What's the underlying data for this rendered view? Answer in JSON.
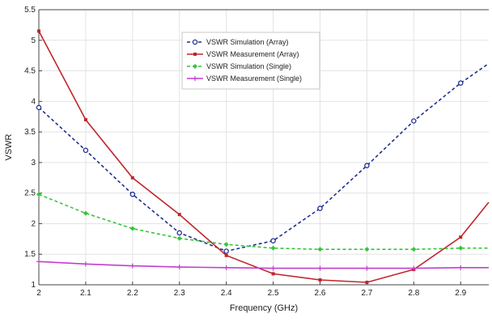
{
  "chart_data": {
    "type": "line",
    "title": "",
    "xlabel": "Frequency (GHz)",
    "ylabel": "VSWR",
    "xlim": [
      2.0,
      2.9
    ],
    "ylim": [
      1.0,
      5.5
    ],
    "xticks": [
      2.0,
      2.1,
      2.2,
      2.3,
      2.4,
      2.5,
      2.6,
      2.7,
      2.8,
      2.9
    ],
    "xtick_labels": [
      "2",
      "2.1",
      "2.2",
      "2.3",
      "2.4",
      "2.5",
      "2.6",
      "2.7",
      "2.8",
      "2.9"
    ],
    "yticks": [
      1.0,
      1.5,
      2.0,
      2.5,
      3.0,
      3.5,
      4.0,
      4.5,
      5.0,
      5.5
    ],
    "ytick_labels": [
      "1",
      "1.5",
      "2",
      "2.5",
      "3",
      "3.5",
      "4",
      "4.5",
      "5",
      "5.5"
    ],
    "grid": true,
    "legend_position": "top-center",
    "series": [
      {
        "name": "VSWR Simulation (Array)",
        "color": "#1f2f8f",
        "dash": true,
        "marker": "circle-open",
        "x": [
          2.0,
          2.1,
          2.2,
          2.3,
          2.4,
          2.5,
          2.6,
          2.7,
          2.8,
          2.9,
          2.96
        ],
        "y": [
          3.9,
          3.2,
          2.48,
          1.85,
          1.55,
          1.72,
          2.25,
          2.95,
          3.68,
          4.3,
          4.62
        ]
      },
      {
        "name": "VSWR Measurement (Array)",
        "color": "#c0262b",
        "dash": false,
        "marker": "square",
        "x": [
          2.0,
          2.1,
          2.2,
          2.3,
          2.4,
          2.5,
          2.6,
          2.7,
          2.8,
          2.9,
          2.96
        ],
        "y": [
          5.15,
          3.7,
          2.75,
          2.15,
          1.48,
          1.18,
          1.08,
          1.04,
          1.25,
          1.78,
          2.35
        ]
      },
      {
        "name": "VSWR Simulation (Single)",
        "color": "#33c43a",
        "dash": true,
        "marker": "diamond",
        "x": [
          2.0,
          2.1,
          2.2,
          2.3,
          2.4,
          2.5,
          2.6,
          2.7,
          2.8,
          2.9,
          2.96
        ],
        "y": [
          2.48,
          2.17,
          1.92,
          1.76,
          1.66,
          1.6,
          1.58,
          1.58,
          1.58,
          1.6,
          1.6
        ]
      },
      {
        "name": "VSWR Measurement (Single)",
        "color": "#c13ed0",
        "dash": false,
        "marker": "plus",
        "x": [
          2.0,
          2.1,
          2.2,
          2.3,
          2.4,
          2.5,
          2.6,
          2.7,
          2.8,
          2.9,
          2.96
        ],
        "y": [
          1.38,
          1.34,
          1.31,
          1.29,
          1.28,
          1.27,
          1.27,
          1.27,
          1.27,
          1.28,
          1.28
        ]
      }
    ]
  }
}
